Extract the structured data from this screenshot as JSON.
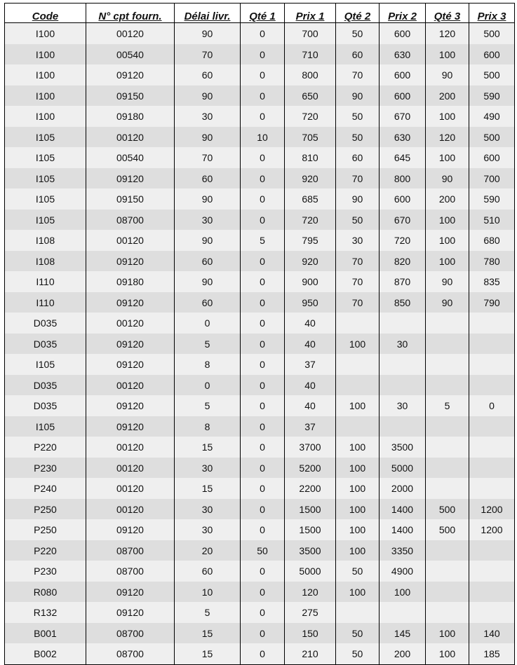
{
  "columns": [
    "Code",
    "N° cpt fourn.",
    "Délai livr.",
    "Qté 1",
    "Prix 1",
    "Qté 2",
    "Prix 2",
    "Qté 3",
    "Prix 3"
  ],
  "rows": [
    [
      "I100",
      "00120",
      "90",
      "0",
      "700",
      "50",
      "600",
      "120",
      "500"
    ],
    [
      "I100",
      "00540",
      "70",
      "0",
      "710",
      "60",
      "630",
      "100",
      "600"
    ],
    [
      "I100",
      "09120",
      "60",
      "0",
      "800",
      "70",
      "600",
      "90",
      "500"
    ],
    [
      "I100",
      "09150",
      "90",
      "0",
      "650",
      "90",
      "600",
      "200",
      "590"
    ],
    [
      "I100",
      "09180",
      "30",
      "0",
      "720",
      "50",
      "670",
      "100",
      "490"
    ],
    [
      "I105",
      "00120",
      "90",
      "10",
      "705",
      "50",
      "630",
      "120",
      "500"
    ],
    [
      "I105",
      "00540",
      "70",
      "0",
      "810",
      "60",
      "645",
      "100",
      "600"
    ],
    [
      "I105",
      "09120",
      "60",
      "0",
      "920",
      "70",
      "800",
      "90",
      "700"
    ],
    [
      "I105",
      "09150",
      "90",
      "0",
      "685",
      "90",
      "600",
      "200",
      "590"
    ],
    [
      "I105",
      "08700",
      "30",
      "0",
      "720",
      "50",
      "670",
      "100",
      "510"
    ],
    [
      "I108",
      "00120",
      "90",
      "5",
      "795",
      "30",
      "720",
      "100",
      "680"
    ],
    [
      "I108",
      "09120",
      "60",
      "0",
      "920",
      "70",
      "820",
      "100",
      "780"
    ],
    [
      "I110",
      "09180",
      "90",
      "0",
      "900",
      "70",
      "870",
      "90",
      "835"
    ],
    [
      "I110",
      "09120",
      "60",
      "0",
      "950",
      "70",
      "850",
      "90",
      "790"
    ],
    [
      "D035",
      "00120",
      "0",
      "0",
      "40",
      "",
      "",
      "",
      ""
    ],
    [
      "D035",
      "09120",
      "5",
      "0",
      "40",
      "100",
      "30",
      "",
      ""
    ],
    [
      "I105",
      "09120",
      "8",
      "0",
      "37",
      "",
      "",
      "",
      ""
    ],
    [
      "D035",
      "00120",
      "0",
      "0",
      "40",
      "",
      "",
      "",
      ""
    ],
    [
      "D035",
      "09120",
      "5",
      "0",
      "40",
      "100",
      "30",
      "5",
      "0"
    ],
    [
      "I105",
      "09120",
      "8",
      "0",
      "37",
      "",
      "",
      "",
      ""
    ],
    [
      "P220",
      "00120",
      "15",
      "0",
      "3700",
      "100",
      "3500",
      "",
      ""
    ],
    [
      "P230",
      "00120",
      "30",
      "0",
      "5200",
      "100",
      "5000",
      "",
      ""
    ],
    [
      "P240",
      "00120",
      "15",
      "0",
      "2200",
      "100",
      "2000",
      "",
      ""
    ],
    [
      "P250",
      "00120",
      "30",
      "0",
      "1500",
      "100",
      "1400",
      "500",
      "1200"
    ],
    [
      "P250",
      "09120",
      "30",
      "0",
      "1500",
      "100",
      "1400",
      "500",
      "1200"
    ],
    [
      "P220",
      "08700",
      "20",
      "50",
      "3500",
      "100",
      "3350",
      "",
      ""
    ],
    [
      "P230",
      "08700",
      "60",
      "0",
      "5000",
      "50",
      "4900",
      "",
      ""
    ],
    [
      "R080",
      "09120",
      "10",
      "0",
      "120",
      "100",
      "100",
      "",
      ""
    ],
    [
      "R132",
      "09120",
      "5",
      "0",
      "275",
      "",
      "",
      "",
      ""
    ],
    [
      "B001",
      "08700",
      "15",
      "0",
      "150",
      "50",
      "145",
      "100",
      "140"
    ],
    [
      "B002",
      "08700",
      "15",
      "0",
      "210",
      "50",
      "200",
      "100",
      "185"
    ]
  ]
}
